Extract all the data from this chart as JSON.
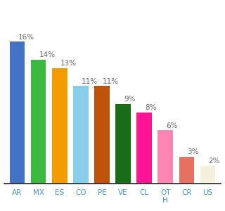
{
  "categories": [
    "AR",
    "MX",
    "ES",
    "CO",
    "PE",
    "VE",
    "CL",
    "OT\nH",
    "CR",
    "US"
  ],
  "values": [
    16,
    14,
    13,
    11,
    11,
    9,
    8,
    6,
    3,
    2
  ],
  "bar_colors": [
    "#4472c4",
    "#3cb940",
    "#f39c00",
    "#87ceeb",
    "#c0530a",
    "#1a6e1a",
    "#ff1493",
    "#ff85b3",
    "#e87060",
    "#f5f0dc"
  ],
  "ylim": [
    0,
    20
  ],
  "background_color": "#ffffff",
  "label_fontsize": 7.5,
  "tick_fontsize": 7.5,
  "bar_width": 0.72
}
